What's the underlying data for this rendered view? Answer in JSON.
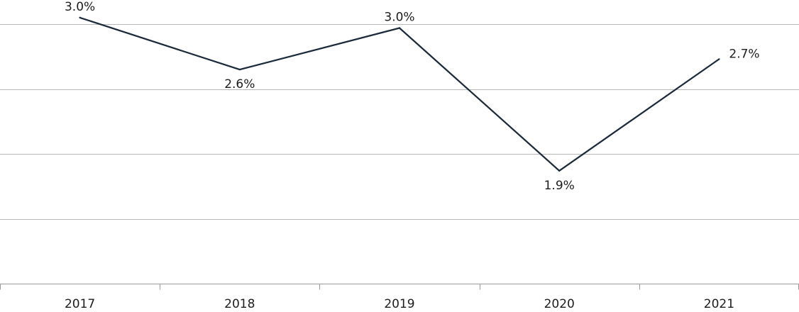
{
  "chart_data": {
    "type": "line",
    "title": "",
    "xlabel": "",
    "ylabel": "",
    "categories": [
      "2017",
      "2018",
      "2019",
      "2020",
      "2021"
    ],
    "series": [
      {
        "values": [
          3.05,
          2.65,
          2.97,
          1.87,
          2.73
        ],
        "labels": [
          "3.0%",
          "2.6%",
          "3.0%",
          "1.9%",
          "2.7%"
        ],
        "label_position": [
          "above",
          "below",
          "above",
          "below",
          "right"
        ]
      }
    ],
    "ylim": [
      1.0,
      3.0
    ],
    "gridlines": [
      1.0,
      1.5,
      2.0,
      2.5,
      3.0
    ],
    "grid": true,
    "y_tick_labels_shown": false,
    "legend": "none",
    "colors": {
      "line": "#1b2a3a",
      "grid": "#b8b8b8",
      "axis": "#9a9a9a"
    }
  }
}
